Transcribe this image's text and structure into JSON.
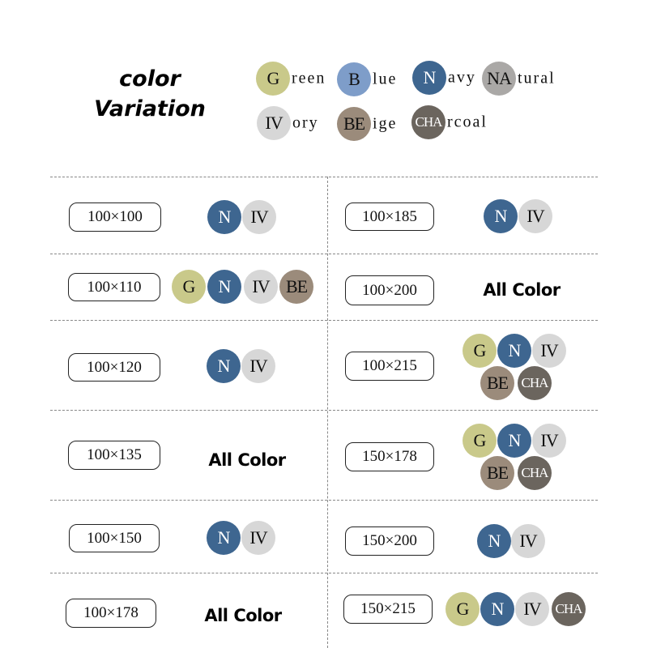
{
  "title_line1": "color",
  "title_line2": "Variation",
  "colors": {
    "G": {
      "abbr": "G",
      "rest": "reen",
      "hex": "#c9c98a",
      "light": false
    },
    "B": {
      "abbr": "B",
      "rest": "lue",
      "hex": "#7e9dc9",
      "light": false
    },
    "N": {
      "abbr": "N",
      "rest": "avy",
      "hex": "#3e6690",
      "light": true
    },
    "NA": {
      "abbr": "NA",
      "rest": "tural",
      "hex": "#aaa8a6",
      "light": false
    },
    "IV": {
      "abbr": "IV",
      "rest": "ory",
      "hex": "#d7d7d7",
      "light": false
    },
    "BE": {
      "abbr": "BE",
      "rest": "ige",
      "hex": "#9b8b7b",
      "light": false
    },
    "CHA": {
      "abbr": "CHA",
      "rest": "rcoal",
      "hex": "#6b655e",
      "light": true
    }
  },
  "all_color_label": "All Color",
  "sizes": [
    {
      "size": "100×100",
      "colors": [
        "N",
        "IV"
      ]
    },
    {
      "size": "100×110",
      "colors": [
        "G",
        "N",
        "IV",
        "BE"
      ]
    },
    {
      "size": "100×120",
      "colors": [
        "N",
        "IV"
      ]
    },
    {
      "size": "100×135",
      "all": true
    },
    {
      "size": "100×150",
      "colors": [
        "N",
        "IV"
      ]
    },
    {
      "size": "100×178",
      "all": true
    },
    {
      "size": "100×185",
      "colors": [
        "N",
        "IV"
      ]
    },
    {
      "size": "100×200",
      "all": true
    },
    {
      "size": "100×215",
      "colors": [
        "G",
        "N",
        "IV",
        "BE",
        "CHA"
      ]
    },
    {
      "size": "150×178",
      "colors": [
        "G",
        "N",
        "IV",
        "BE",
        "CHA"
      ]
    },
    {
      "size": "150×200",
      "colors": [
        "N",
        "IV"
      ]
    },
    {
      "size": "150×215",
      "colors": [
        "G",
        "N",
        "IV",
        "CHA"
      ]
    }
  ]
}
